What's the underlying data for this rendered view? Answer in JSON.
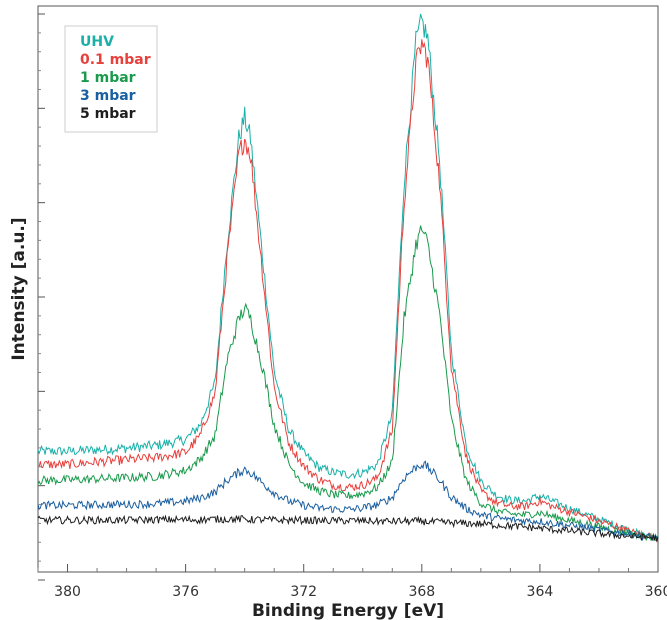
{
  "chart_data": {
    "type": "line",
    "xlabel": "Binding Energy [eV]",
    "ylabel": "Intensity [a.u.]",
    "xlim": [
      381,
      360
    ],
    "ylim": [
      0,
      100
    ],
    "x_reversed": true,
    "x_ticks": [
      380,
      376,
      372,
      368,
      364,
      360
    ],
    "grid": false,
    "legend_position": "top-left",
    "x": [
      381,
      380,
      379,
      378,
      377,
      376,
      375.5,
      375,
      374.6,
      374.2,
      374,
      373.8,
      373.4,
      373,
      372.5,
      372,
      371.5,
      371,
      370.5,
      370,
      369.5,
      369,
      368.6,
      368.2,
      368,
      367.8,
      367.4,
      367,
      366.5,
      366,
      365.5,
      365,
      364.5,
      364,
      363.5,
      363,
      362.5,
      362,
      361.5,
      361,
      360.5,
      360
    ],
    "series": [
      {
        "name": "UHV",
        "color": "#1ab0a8",
        "values": [
          19.0,
          19.0,
          19.3,
          19.6,
          20.1,
          21.2,
          24.0,
          32.0,
          58.0,
          78.0,
          82.0,
          78.0,
          56.0,
          34.0,
          23.0,
          18.6,
          16.0,
          15.0,
          14.6,
          15.0,
          16.5,
          26.0,
          70.0,
          96.0,
          100.0,
          97.0,
          74.0,
          38.0,
          20.0,
          13.4,
          10.8,
          9.8,
          9.6,
          10.6,
          9.4,
          8.2,
          7.2,
          6.2,
          5.2,
          4.2,
          3.2,
          2.8
        ]
      },
      {
        "name": "0.1 mbar",
        "color": "#e8403c",
        "values": [
          16.5,
          16.5,
          17.0,
          17.4,
          17.8,
          18.8,
          22.0,
          30.0,
          55.0,
          75.0,
          78.0,
          75.0,
          53.0,
          31.0,
          20.5,
          16.2,
          13.8,
          12.6,
          12.2,
          12.6,
          14.0,
          23.0,
          66.0,
          92.0,
          96.0,
          93.0,
          70.0,
          35.0,
          18.0,
          11.4,
          9.4,
          8.6,
          8.6,
          9.6,
          8.4,
          7.6,
          6.8,
          5.8,
          5.0,
          4.0,
          3.2,
          2.6
        ]
      },
      {
        "name": "1 mbar",
        "color": "#1a9a4c",
        "values": [
          13.5,
          13.6,
          13.8,
          14.0,
          14.3,
          15.4,
          17.5,
          22.0,
          36.0,
          44.0,
          46.0,
          44.0,
          35.0,
          24.0,
          16.5,
          13.0,
          11.6,
          10.8,
          10.6,
          11.0,
          12.2,
          17.0,
          44.0,
          58.0,
          61.0,
          58.0,
          45.0,
          25.0,
          13.5,
          9.2,
          7.8,
          7.2,
          7.0,
          7.4,
          6.6,
          6.0,
          5.4,
          4.8,
          4.2,
          3.6,
          3.0,
          2.6
        ]
      },
      {
        "name": "3 mbar",
        "color": "#1a5fa0",
        "values": [
          8.8,
          8.8,
          8.9,
          9.0,
          9.1,
          9.6,
          10.2,
          11.3,
          13.5,
          15.0,
          15.6,
          15.0,
          13.0,
          11.2,
          9.6,
          8.8,
          8.3,
          8.1,
          8.0,
          8.3,
          8.9,
          10.3,
          14.0,
          16.0,
          16.6,
          16.0,
          13.6,
          10.4,
          8.2,
          7.0,
          6.4,
          6.1,
          5.9,
          5.8,
          5.4,
          5.0,
          4.6,
          4.2,
          3.8,
          3.4,
          3.0,
          2.7
        ]
      },
      {
        "name": "5 mbar",
        "color": "#1e1e1e",
        "values": [
          6.0,
          6.0,
          6.0,
          6.0,
          6.1,
          6.1,
          6.1,
          6.2,
          6.2,
          6.2,
          6.2,
          6.1,
          6.1,
          6.0,
          6.0,
          6.0,
          5.9,
          5.9,
          5.9,
          5.9,
          5.8,
          5.8,
          5.8,
          5.8,
          5.8,
          5.7,
          5.6,
          5.5,
          5.4,
          5.3,
          5.1,
          4.9,
          4.7,
          4.5,
          4.2,
          4.0,
          3.7,
          3.5,
          3.2,
          3.0,
          2.8,
          2.6
        ]
      }
    ]
  }
}
